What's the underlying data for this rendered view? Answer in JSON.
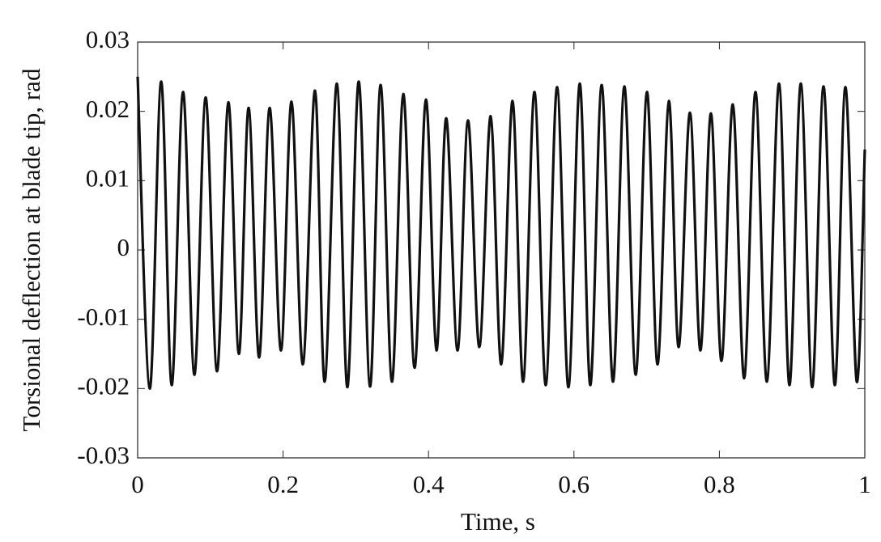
{
  "chart_data": {
    "type": "line",
    "xlabel": "Time, s",
    "ylabel": "Torsional deflection at blade tip, rad",
    "xlim": [
      0,
      1
    ],
    "ylim": [
      -0.03,
      0.03
    ],
    "xticks": [
      0,
      0.2,
      0.4,
      0.6,
      0.8,
      1
    ],
    "yticks": [
      -0.03,
      -0.02,
      -0.01,
      0,
      0.01,
      0.02,
      0.03
    ],
    "series": [
      {
        "color": "#111111",
        "x": [
          0,
          0.0167,
          0.0323,
          0.0468,
          0.0624,
          0.078,
          0.0935,
          0.1091,
          0.1247,
          0.1392,
          0.1526,
          0.167,
          0.1815,
          0.1971,
          0.2116,
          0.2272,
          0.2439,
          0.2572,
          0.2739,
          0.2884,
          0.304,
          0.3196,
          0.3341,
          0.3497,
          0.3653,
          0.3808,
          0.3964,
          0.4109,
          0.4243,
          0.4399,
          0.4543,
          0.4699,
          0.4855,
          0.5,
          0.5156,
          0.5301,
          0.5457,
          0.5612,
          0.5768,
          0.5924,
          0.608,
          0.6225,
          0.6381,
          0.6537,
          0.6693,
          0.6849,
          0.7004,
          0.7149,
          0.7305,
          0.7439,
          0.7595,
          0.7739,
          0.7884,
          0.8029,
          0.8185,
          0.8341,
          0.8497,
          0.8653,
          0.882,
          0.8964,
          0.912,
          0.9276,
          0.9432,
          0.9588,
          0.9733,
          0.9889,
          1.0
        ],
        "values": [
          0.025,
          -0.02,
          0.0243,
          -0.0195,
          0.0228,
          -0.018,
          0.022,
          -0.0175,
          0.0213,
          -0.015,
          0.0205,
          -0.0155,
          0.0205,
          -0.0145,
          0.0214,
          -0.0165,
          0.023,
          -0.019,
          0.024,
          -0.0198,
          0.0243,
          -0.0197,
          0.0238,
          -0.019,
          0.0225,
          -0.017,
          0.0217,
          -0.0145,
          0.019,
          -0.0145,
          0.0187,
          -0.014,
          0.0193,
          -0.0165,
          0.0215,
          -0.019,
          0.0228,
          -0.0195,
          0.0235,
          -0.0198,
          0.024,
          -0.0195,
          0.0238,
          -0.019,
          0.0236,
          -0.018,
          0.0228,
          -0.0165,
          0.0215,
          -0.014,
          0.0198,
          -0.0145,
          0.0197,
          -0.016,
          0.021,
          -0.0185,
          0.0228,
          -0.019,
          0.024,
          -0.0195,
          0.024,
          -0.0198,
          0.0236,
          -0.0195,
          0.0235,
          -0.019,
          0.0145
        ]
      }
    ]
  }
}
